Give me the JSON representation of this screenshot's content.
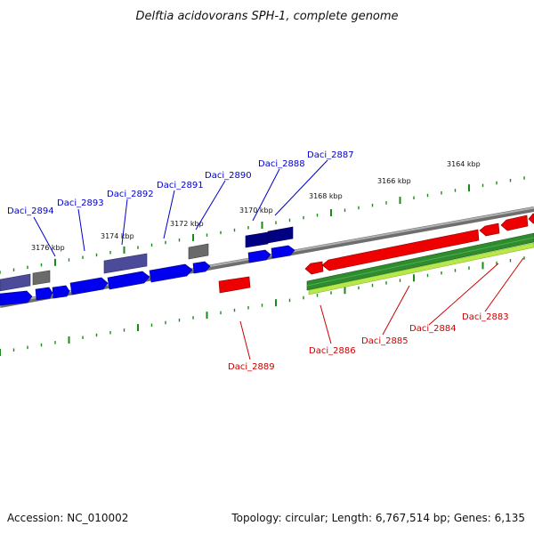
{
  "title": "Delftia acidovorans SPH-1, complete genome",
  "footer": {
    "accession": "Accession: NC_010002",
    "stats": "Topology: circular; Length: 6,767,514 bp; Genes: 6,135"
  },
  "colors": {
    "forward_label": "#0000cc",
    "reverse_label": "#cc0000",
    "tick_green": "#1a8a1a",
    "backbone": "#888888",
    "gene_blue": "#0000ee",
    "gene_navy": "#000080",
    "gene_slate": "#4b4b99",
    "gene_gray": "#6a6a6a",
    "gene_red": "#ee0000",
    "gene_green": "#2e8b2e",
    "gene_lime": "#b6e84a"
  },
  "scale_labels": {
    "kbp_3176": "3176 kbp",
    "kbp_3174": "3174 kbp",
    "kbp_3172": "3172 kbp",
    "kbp_3170": "3170 kbp",
    "kbp_3168": "3168 kbp",
    "kbp_3166": "3166 kbp",
    "kbp_3164": "3164 kbp"
  },
  "genes": {
    "daci_2894": "Daci_2894",
    "daci_2893": "Daci_2893",
    "daci_2892": "Daci_2892",
    "daci_2891": "Daci_2891",
    "daci_2890": "Daci_2890",
    "daci_2888": "Daci_2888",
    "daci_2887": "Daci_2887",
    "daci_2889": "Daci_2889",
    "daci_2886": "Daci_2886",
    "daci_2885": "Daci_2885",
    "daci_2884": "Daci_2884",
    "daci_2883": "Daci_2883"
  }
}
